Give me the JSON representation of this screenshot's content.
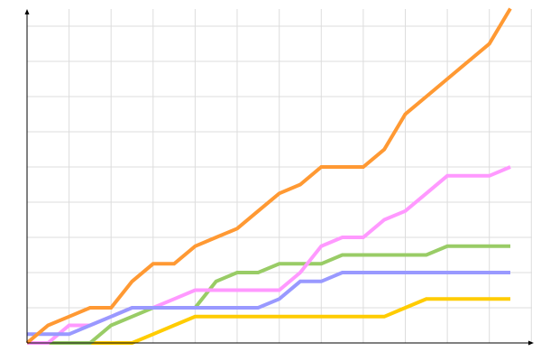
{
  "chart_data": {
    "type": "line",
    "title": "",
    "xlabel": "",
    "ylabel": "",
    "x": [
      0,
      1,
      2,
      3,
      4,
      5,
      6,
      7,
      8,
      9,
      10,
      11,
      12,
      13,
      14,
      15,
      16,
      17,
      18,
      19,
      20,
      21,
      22,
      23
    ],
    "xlim": [
      0,
      24
    ],
    "ylim": [
      0,
      9.5
    ],
    "x_grid_step": 2,
    "y_grid_step": 1,
    "grid": true,
    "grid_color": "#dddddd",
    "axis_color": "#000000",
    "series": [
      {
        "color": "#ffcc00",
        "values": [
          0,
          0,
          0,
          0,
          0,
          0,
          0.25,
          0.5,
          0.75,
          0.75,
          0.75,
          0.75,
          0.75,
          0.75,
          0.75,
          0.75,
          0.75,
          0.75,
          1,
          1.25,
          1.25,
          1.25,
          1.25,
          1.25
        ]
      },
      {
        "color": "#99cc66",
        "values": [
          0,
          0,
          0,
          0,
          0.5,
          0.75,
          1,
          1,
          1,
          1.75,
          2,
          2,
          2.25,
          2.25,
          2.25,
          2.5,
          2.5,
          2.5,
          2.5,
          2.5,
          2.75,
          2.75,
          2.75,
          2.75
        ]
      },
      {
        "color": "#ff99ff",
        "values": [
          0,
          0,
          0.5,
          0.5,
          0.75,
          1,
          1,
          1.25,
          1.5,
          1.5,
          1.5,
          1.5,
          1.5,
          2,
          2.75,
          3,
          3,
          3.5,
          3.75,
          4.25,
          4.75,
          4.75,
          4.75,
          5
        ]
      },
      {
        "color": "#9999ff",
        "values": [
          0.25,
          0.25,
          0.25,
          0.5,
          0.75,
          1,
          1,
          1,
          1,
          1,
          1,
          1,
          1.25,
          1.75,
          1.75,
          2,
          2,
          2,
          2,
          2,
          2,
          2,
          2,
          2
        ]
      },
      {
        "color": "#ff9933",
        "values": [
          0,
          0.5,
          0.75,
          1,
          1,
          1.75,
          2.25,
          2.25,
          2.75,
          3,
          3.25,
          3.75,
          4.25,
          4.5,
          5,
          5,
          5,
          5.5,
          6.5,
          7,
          7.5,
          8,
          8.5,
          9.5
        ]
      }
    ]
  }
}
